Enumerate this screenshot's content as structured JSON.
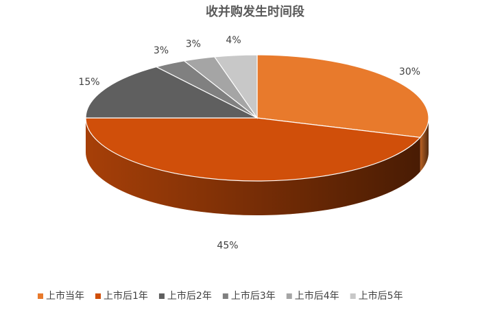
{
  "chart_data": {
    "type": "pie3d",
    "title": "收并购发生时间段",
    "categories": [
      "上市当年",
      "上市后1年",
      "上市后2年",
      "上市后3年",
      "上市后4年",
      "上市后5年"
    ],
    "values": [
      30,
      45,
      15,
      3,
      3,
      4
    ],
    "value_labels": [
      "30%",
      "45%",
      "15%",
      "3%",
      "3%",
      "4%"
    ],
    "colors": [
      "#E87A2C",
      "#D04F0A",
      "#5F5F5F",
      "#808080",
      "#A5A5A5",
      "#C8C8C8"
    ],
    "legend": "bottom"
  }
}
